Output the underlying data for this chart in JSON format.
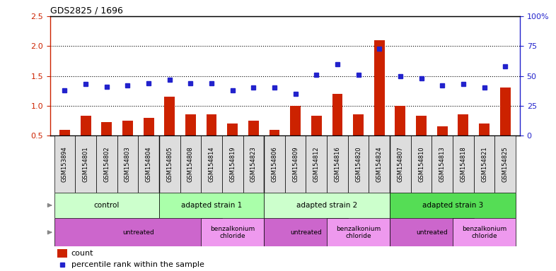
{
  "title": "GDS2825 / 1696",
  "samples": [
    "GSM153894",
    "GSM154801",
    "GSM154802",
    "GSM154803",
    "GSM154804",
    "GSM154805",
    "GSM154808",
    "GSM154814",
    "GSM154819",
    "GSM154823",
    "GSM154806",
    "GSM154809",
    "GSM154812",
    "GSM154816",
    "GSM154820",
    "GSM154824",
    "GSM154807",
    "GSM154810",
    "GSM154813",
    "GSM154818",
    "GSM154821",
    "GSM154825"
  ],
  "count_values": [
    0.6,
    0.83,
    0.73,
    0.75,
    0.8,
    1.15,
    0.85,
    0.85,
    0.7,
    0.75,
    0.6,
    1.0,
    0.83,
    1.2,
    0.85,
    2.1,
    1.0,
    0.83,
    0.65,
    0.85,
    0.7,
    1.3
  ],
  "percentile_values": [
    38,
    43,
    41,
    42,
    44,
    47,
    44,
    44,
    38,
    40,
    40,
    35,
    51,
    60,
    51,
    73,
    50,
    48,
    42,
    43,
    40,
    58
  ],
  "ylim_left": [
    0.5,
    2.5
  ],
  "ylim_right": [
    0,
    100
  ],
  "yticks_left": [
    0.5,
    1.0,
    1.5,
    2.0,
    2.5
  ],
  "yticks_right": [
    0,
    25,
    50,
    75,
    100
  ],
  "ytick_labels_right": [
    "0",
    "25",
    "50",
    "75",
    "100%"
  ],
  "bar_color": "#cc2200",
  "dot_color": "#2222cc",
  "strain_groups": [
    {
      "label": "control",
      "start": 0,
      "end": 4,
      "color": "#ccffcc"
    },
    {
      "label": "adapted strain 1",
      "start": 5,
      "end": 9,
      "color": "#aaffaa"
    },
    {
      "label": "adapted strain 2",
      "start": 10,
      "end": 15,
      "color": "#ccffcc"
    },
    {
      "label": "adapted strain 3",
      "start": 16,
      "end": 21,
      "color": "#55dd55"
    }
  ],
  "protocol_groups": [
    {
      "label": "untreated",
      "start": 0,
      "end": 7,
      "color": "#cc66cc"
    },
    {
      "label": "benzalkonium\nchloride",
      "start": 7,
      "end": 9,
      "color": "#ee99ee"
    },
    {
      "label": "untreated",
      "start": 10,
      "end": 13,
      "color": "#cc66cc"
    },
    {
      "label": "benzalkonium\nchloride",
      "start": 13,
      "end": 15,
      "color": "#ee99ee"
    },
    {
      "label": "untreated",
      "start": 16,
      "end": 19,
      "color": "#cc66cc"
    },
    {
      "label": "benzalkonium\nchloride",
      "start": 19,
      "end": 21,
      "color": "#ee99ee"
    }
  ],
  "legend_items": [
    {
      "label": "count",
      "color": "#cc2200"
    },
    {
      "label": "percentile rank within the sample",
      "color": "#2222cc"
    }
  ],
  "group_separators": [
    4.5,
    9.5,
    15.5
  ]
}
